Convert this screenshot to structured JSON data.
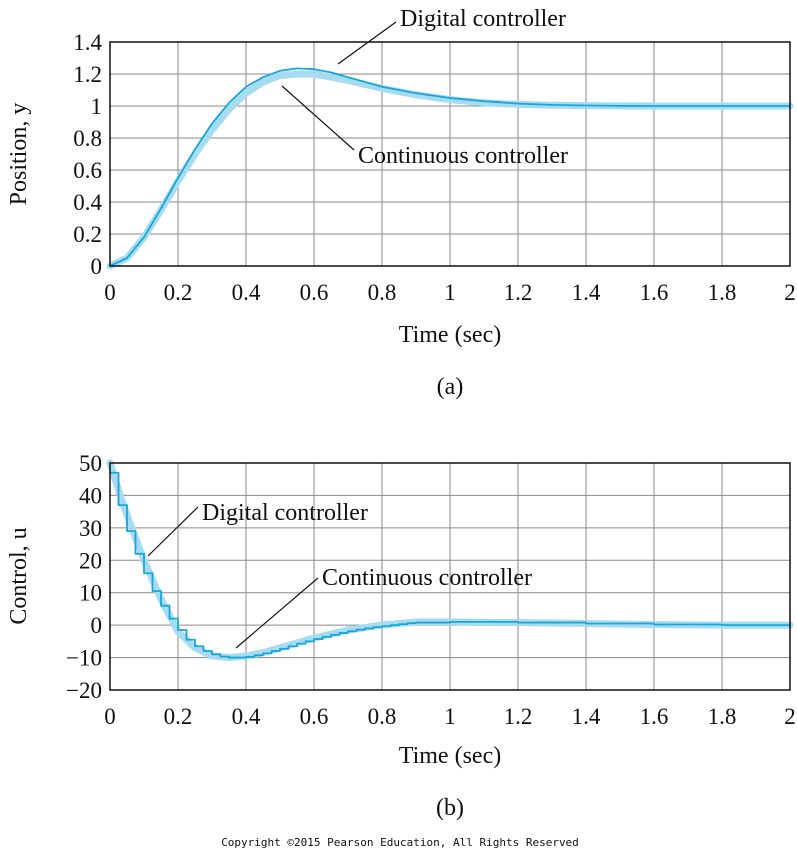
{
  "chart_data": [
    {
      "type": "line",
      "caption": "(a)",
      "xlabel": "Time (sec)",
      "ylabel": "Position, y",
      "xlim": [
        0,
        2
      ],
      "ylim": [
        0,
        1.4
      ],
      "grid": true,
      "xticks": [
        "0",
        "0.2",
        "0.4",
        "0.6",
        "0.8",
        "1",
        "1.2",
        "1.4",
        "1.6",
        "1.8",
        "2"
      ],
      "yticks": [
        "0",
        "0.2",
        "0.4",
        "0.6",
        "0.8",
        "1",
        "1.2",
        "1.4"
      ],
      "annotations": [
        {
          "text": "Digital controller",
          "target_series": "digital"
        },
        {
          "text": "Continuous controller",
          "target_series": "continuous"
        }
      ],
      "series": [
        {
          "id": "continuous",
          "color": "#a6dcf2",
          "x": [
            0,
            0.05,
            0.1,
            0.15,
            0.2,
            0.25,
            0.3,
            0.35,
            0.4,
            0.45,
            0.5,
            0.55,
            0.6,
            0.65,
            0.7,
            0.8,
            0.9,
            1.0,
            1.1,
            1.2,
            1.3,
            1.4,
            1.5,
            1.6,
            1.8,
            2.0
          ],
          "y": [
            0,
            0.05,
            0.18,
            0.35,
            0.53,
            0.7,
            0.85,
            0.98,
            1.08,
            1.15,
            1.19,
            1.2,
            1.2,
            1.18,
            1.16,
            1.11,
            1.07,
            1.04,
            1.02,
            1.01,
            1.005,
            1.002,
            1.001,
            1.0,
            1.0,
            1.0
          ]
        },
        {
          "id": "digital",
          "color": "#1aa6d8",
          "x": [
            0,
            0.05,
            0.1,
            0.15,
            0.2,
            0.25,
            0.3,
            0.35,
            0.4,
            0.45,
            0.5,
            0.55,
            0.6,
            0.65,
            0.7,
            0.8,
            0.9,
            1.0,
            1.1,
            1.2,
            1.3,
            1.4,
            1.5,
            1.6,
            1.8,
            2.0
          ],
          "y": [
            0,
            0.05,
            0.18,
            0.36,
            0.55,
            0.73,
            0.89,
            1.02,
            1.12,
            1.18,
            1.22,
            1.235,
            1.23,
            1.21,
            1.18,
            1.12,
            1.08,
            1.05,
            1.03,
            1.015,
            1.007,
            1.003,
            1.001,
            1.0,
            1.0,
            1.0
          ]
        }
      ]
    },
    {
      "type": "line",
      "caption": "(b)",
      "xlabel": "Time (sec)",
      "ylabel": "Control, u",
      "xlim": [
        0,
        2
      ],
      "ylim": [
        -20,
        50
      ],
      "grid": true,
      "xticks": [
        "0",
        "0.2",
        "0.4",
        "0.6",
        "0.8",
        "1",
        "1.2",
        "1.4",
        "1.6",
        "1.8",
        "2"
      ],
      "yticks": [
        "−20",
        "−10",
        "0",
        "10",
        "20",
        "30",
        "40",
        "50"
      ],
      "annotations": [
        {
          "text": "Digital controller",
          "target_series": "digital"
        },
        {
          "text": "Continuous controller",
          "target_series": "continuous"
        }
      ],
      "series": [
        {
          "id": "continuous",
          "color": "#a6dcf2",
          "x": [
            0,
            0.03,
            0.06,
            0.1,
            0.15,
            0.2,
            0.25,
            0.3,
            0.35,
            0.4,
            0.45,
            0.5,
            0.6,
            0.7,
            0.8,
            0.9,
            1.0,
            1.2,
            1.4,
            1.6,
            1.8,
            2.0
          ],
          "y": [
            50,
            40,
            31,
            20,
            8,
            -2,
            -7,
            -9.5,
            -10,
            -9.5,
            -8.5,
            -7,
            -4,
            -1.5,
            0,
            1,
            1,
            0.8,
            0.5,
            0.2,
            0,
            0
          ]
        },
        {
          "id": "digital",
          "color": "#1aa6d8",
          "step": true,
          "x": [
            0,
            0.025,
            0.05,
            0.075,
            0.1,
            0.125,
            0.15,
            0.175,
            0.2,
            0.225,
            0.25,
            0.275,
            0.3,
            0.325,
            0.35,
            0.375,
            0.4,
            0.425,
            0.45,
            0.475,
            0.5,
            0.525,
            0.55,
            0.575,
            0.6,
            0.625,
            0.65,
            0.675,
            0.7,
            0.725,
            0.75,
            0.775,
            0.8,
            0.825,
            0.85,
            0.875,
            0.9,
            1.0,
            1.2,
            1.4,
            1.6,
            1.8,
            2.0
          ],
          "y": [
            47,
            37,
            29,
            22,
            16,
            10.5,
            6,
            2,
            -1.5,
            -4.5,
            -6.5,
            -8,
            -9,
            -9.7,
            -10,
            -10,
            -9.8,
            -9.3,
            -8.7,
            -8,
            -7.3,
            -6.5,
            -5.7,
            -5,
            -4.3,
            -3.6,
            -3,
            -2.4,
            -1.9,
            -1.4,
            -1,
            -0.6,
            -0.3,
            0,
            0.3,
            0.6,
            0.8,
            1,
            0.8,
            0.5,
            0.2,
            0,
            0
          ]
        }
      ]
    }
  ],
  "copyright": "Copyright ©2015 Pearson Education, All Rights Reserved"
}
